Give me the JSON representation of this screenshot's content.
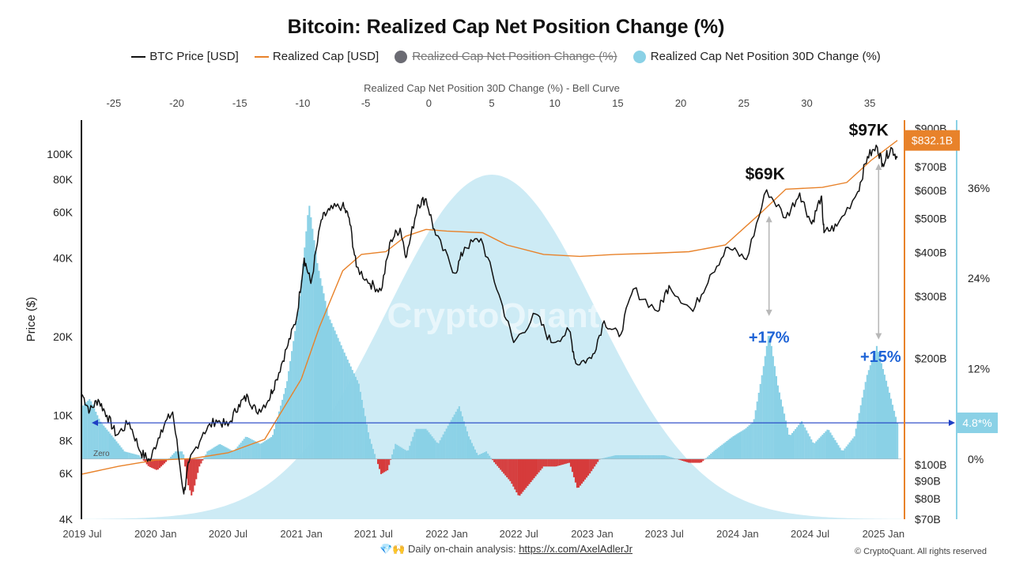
{
  "title": "Bitcoin: Realized Cap Net Position Change (%)",
  "legend": {
    "btc_price": "BTC Price [USD]",
    "realized_cap": "Realized Cap [USD]",
    "net_position_change": "Realized Cap Net Position Change (%)",
    "net_position_30d": "Realized Cap Net Position 30D Change (%)"
  },
  "colors": {
    "btc_price": "#111111",
    "realized_cap": "#e8822a",
    "bar_positive": "#8ad1e6",
    "bar_negative": "#d63b3b",
    "bell": "#cdebf5",
    "annotation_blue": "#1e63d6",
    "arrow_gray": "#b8b8b8",
    "marker_line": "#1e3fc4",
    "cap_label_bg": "#e8822a",
    "pct_label_bg": "#8ad1e6"
  },
  "footer": {
    "icons": "💎🙌",
    "text": "Daily on-chain analysis: ",
    "link": "https://x.com/AxelAdlerJr"
  },
  "copyright": "© CryptoQuant. All rights reserved",
  "watermark": "CryptoQuant",
  "chart_data": {
    "type": "line",
    "top_axis_label": "Realized Cap Net Position 30D Change (%) - Bell Curve",
    "top_axis_ticks": [
      "-25",
      "-20",
      "-15",
      "-10",
      "-5",
      "0",
      "5",
      "10",
      "15",
      "20",
      "25",
      "30",
      "35"
    ],
    "top_axis_range": [
      -27.5,
      37.5
    ],
    "ylabel_left": "Price ($)",
    "y_left_ticks": [
      "100K",
      "80K",
      "60K",
      "40K",
      "20K",
      "10K",
      "8K",
      "6K",
      "4K"
    ],
    "y_left_range": [
      4000,
      135000
    ],
    "y_left_scale": "log",
    "y_right_cap_ticks": [
      "$900B",
      "$700B",
      "$600B",
      "$500B",
      "$400B",
      "$300B",
      "$200B",
      "$100B",
      "$90B",
      "$80B",
      "$70B"
    ],
    "y_right_cap_range": [
      70,
      950
    ],
    "y_right_cap_scale": "log",
    "y_right_pct_ticks": [
      "36%",
      "24%",
      "12%",
      "0%"
    ],
    "y_right_pct_range": [
      -8,
      45
    ],
    "x_ticks": [
      "2019 Jul",
      "2020 Jan",
      "2020 Jul",
      "2021 Jan",
      "2021 Jul",
      "2022 Jan",
      "2022 Jul",
      "2023 Jan",
      "2023 Jul",
      "2024 Jan",
      "2024 Jul",
      "2025 Jan"
    ],
    "x_range": [
      "2019-07-01",
      "2025-02-15"
    ],
    "zero_label": "Zero",
    "current_cap_label": "$832.1B",
    "current_pct_label": "4.8*%",
    "reference_pct": 4.8,
    "annotations": [
      {
        "text": "$97K",
        "date": "2024-11-25",
        "price": 118000
      },
      {
        "text": "$69K",
        "date": "2024-03-10",
        "price": 80000
      },
      {
        "text": "+17%",
        "date": "2024-03-20",
        "price": 19000
      },
      {
        "text": "+15%",
        "date": "2024-12-25",
        "price": 16000
      }
    ],
    "arrows": [
      {
        "date": "2024-03-20",
        "price_from": 58000,
        "price_to": 24000
      },
      {
        "date": "2024-12-20",
        "price_from": 92000,
        "price_to": 19500
      }
    ],
    "bell_curve": {
      "center_pct": 5,
      "sigma_pct": 8.3
    },
    "btc_price": [
      [
        "2019-07-01",
        12000
      ],
      [
        "2019-07-20",
        10400
      ],
      [
        "2019-08-10",
        11500
      ],
      [
        "2019-09-01",
        10000
      ],
      [
        "2019-09-25",
        8400
      ],
      [
        "2019-10-27",
        9400
      ],
      [
        "2019-11-25",
        7200
      ],
      [
        "2019-12-18",
        6700
      ],
      [
        "2020-01-15",
        8800
      ],
      [
        "2020-02-13",
        10300
      ],
      [
        "2020-03-12",
        5000
      ],
      [
        "2020-03-25",
        6600
      ],
      [
        "2020-04-30",
        8600
      ],
      [
        "2020-06-01",
        9600
      ],
      [
        "2020-07-01",
        9100
      ],
      [
        "2020-07-28",
        11000
      ],
      [
        "2020-08-20",
        11800
      ],
      [
        "2020-09-10",
        10300
      ],
      [
        "2020-10-10",
        11400
      ],
      [
        "2020-10-30",
        13700
      ],
      [
        "2020-11-25",
        18000
      ],
      [
        "2020-12-20",
        23500
      ],
      [
        "2021-01-08",
        40000
      ],
      [
        "2021-01-25",
        32000
      ],
      [
        "2021-02-20",
        56000
      ],
      [
        "2021-03-13",
        61000
      ],
      [
        "2021-04-14",
        63500
      ],
      [
        "2021-05-01",
        57000
      ],
      [
        "2021-05-19",
        37000
      ],
      [
        "2021-06-22",
        32000
      ],
      [
        "2021-07-20",
        30000
      ],
      [
        "2021-08-14",
        47000
      ],
      [
        "2021-09-06",
        52000
      ],
      [
        "2021-09-22",
        40500
      ],
      [
        "2021-10-20",
        64000
      ],
      [
        "2021-11-10",
        67500
      ],
      [
        "2021-12-04",
        49000
      ],
      [
        "2022-01-22",
        35000
      ],
      [
        "2022-02-15",
        44000
      ],
      [
        "2022-03-28",
        47500
      ],
      [
        "2022-05-12",
        29000
      ],
      [
        "2022-06-18",
        19000
      ],
      [
        "2022-08-13",
        24400
      ],
      [
        "2022-09-20",
        19000
      ],
      [
        "2022-11-05",
        21000
      ],
      [
        "2022-11-21",
        15800
      ],
      [
        "2022-12-30",
        16500
      ],
      [
        "2023-01-31",
        23000
      ],
      [
        "2023-03-10",
        20000
      ],
      [
        "2023-04-14",
        30400
      ],
      [
        "2023-06-15",
        25000
      ],
      [
        "2023-07-13",
        31400
      ],
      [
        "2023-09-11",
        25000
      ],
      [
        "2023-10-24",
        34500
      ],
      [
        "2023-12-08",
        44000
      ],
      [
        "2024-01-23",
        39500
      ],
      [
        "2024-03-14",
        73000
      ],
      [
        "2024-05-01",
        57000
      ],
      [
        "2024-06-05",
        71000
      ],
      [
        "2024-07-05",
        54000
      ],
      [
        "2024-07-29",
        69000
      ],
      [
        "2024-08-05",
        50000
      ],
      [
        "2024-09-06",
        53000
      ],
      [
        "2024-10-29",
        72000
      ],
      [
        "2024-11-22",
        98000
      ],
      [
        "2024-12-17",
        106000
      ],
      [
        "2024-12-30",
        92000
      ],
      [
        "2025-01-20",
        106000
      ],
      [
        "2025-02-05",
        97000
      ]
    ],
    "realized_cap_billion": [
      [
        "2019-07-01",
        94
      ],
      [
        "2019-10-01",
        99
      ],
      [
        "2020-01-01",
        103
      ],
      [
        "2020-04-01",
        104
      ],
      [
        "2020-07-01",
        108
      ],
      [
        "2020-10-01",
        118
      ],
      [
        "2021-01-01",
        175
      ],
      [
        "2021-02-15",
        245
      ],
      [
        "2021-04-15",
        355
      ],
      [
        "2021-06-01",
        395
      ],
      [
        "2021-08-01",
        402
      ],
      [
        "2021-09-20",
        445
      ],
      [
        "2021-11-10",
        465
      ],
      [
        "2022-01-01",
        460
      ],
      [
        "2022-04-01",
        455
      ],
      [
        "2022-06-01",
        420
      ],
      [
        "2022-09-01",
        395
      ],
      [
        "2022-12-01",
        390
      ],
      [
        "2023-03-01",
        395
      ],
      [
        "2023-06-01",
        398
      ],
      [
        "2023-09-01",
        402
      ],
      [
        "2023-12-01",
        420
      ],
      [
        "2024-03-01",
        520
      ],
      [
        "2024-05-01",
        605
      ],
      [
        "2024-08-01",
        612
      ],
      [
        "2024-10-01",
        632
      ],
      [
        "2024-12-01",
        730
      ],
      [
        "2025-02-05",
        832
      ]
    ],
    "net_position_30d_pct": [
      [
        "2019-07-01",
        7
      ],
      [
        "2019-07-20",
        8
      ],
      [
        "2019-08-15",
        5
      ],
      [
        "2019-09-15",
        3
      ],
      [
        "2019-10-15",
        1
      ],
      [
        "2019-11-20",
        0.5
      ],
      [
        "2019-12-15",
        -1
      ],
      [
        "2020-01-05",
        -1.5
      ],
      [
        "2020-01-25",
        -0.5
      ],
      [
        "2020-02-20",
        1
      ],
      [
        "2020-03-10",
        1
      ],
      [
        "2020-03-20",
        -3
      ],
      [
        "2020-04-01",
        -5
      ],
      [
        "2020-04-20",
        -1
      ],
      [
        "2020-05-10",
        1
      ],
      [
        "2020-06-10",
        2
      ],
      [
        "2020-07-15",
        1
      ],
      [
        "2020-08-15",
        3
      ],
      [
        "2020-09-20",
        2
      ],
      [
        "2020-10-20",
        3
      ],
      [
        "2020-11-25",
        10
      ],
      [
        "2020-12-25",
        20
      ],
      [
        "2021-01-20",
        34
      ],
      [
        "2021-02-10",
        26
      ],
      [
        "2021-03-10",
        19
      ],
      [
        "2021-04-20",
        14
      ],
      [
        "2021-05-25",
        10
      ],
      [
        "2021-06-20",
        3
      ],
      [
        "2021-07-20",
        -2
      ],
      [
        "2021-08-05",
        -1.5
      ],
      [
        "2021-08-25",
        2
      ],
      [
        "2021-09-25",
        1
      ],
      [
        "2021-10-15",
        4
      ],
      [
        "2021-11-10",
        4
      ],
      [
        "2021-12-10",
        2
      ],
      [
        "2022-01-10",
        5
      ],
      [
        "2022-02-01",
        7
      ],
      [
        "2022-02-25",
        3
      ],
      [
        "2022-03-20",
        0.5
      ],
      [
        "2022-04-10",
        1
      ],
      [
        "2022-05-01",
        -0.5
      ],
      [
        "2022-06-10",
        -3
      ],
      [
        "2022-07-01",
        -5
      ],
      [
        "2022-08-01",
        -3
      ],
      [
        "2022-09-01",
        -1
      ],
      [
        "2022-10-01",
        -1
      ],
      [
        "2022-11-05",
        -0.5
      ],
      [
        "2022-11-25",
        -4
      ],
      [
        "2022-12-25",
        -2
      ],
      [
        "2023-01-20",
        0
      ],
      [
        "2023-03-01",
        0.5
      ],
      [
        "2023-05-01",
        0.5
      ],
      [
        "2023-07-01",
        0.5
      ],
      [
        "2023-09-01",
        -0.5
      ],
      [
        "2023-10-01",
        -0.5
      ],
      [
        "2023-11-01",
        1
      ],
      [
        "2023-12-20",
        3
      ],
      [
        "2024-01-20",
        4
      ],
      [
        "2024-02-10",
        5
      ],
      [
        "2024-03-05",
        12
      ],
      [
        "2024-03-20",
        17
      ],
      [
        "2024-04-10",
        10
      ],
      [
        "2024-05-10",
        3
      ],
      [
        "2024-06-10",
        5
      ],
      [
        "2024-07-10",
        2
      ],
      [
        "2024-08-15",
        4
      ],
      [
        "2024-09-20",
        1
      ],
      [
        "2024-10-20",
        3
      ],
      [
        "2024-11-20",
        11
      ],
      [
        "2024-12-15",
        15
      ],
      [
        "2025-01-05",
        11
      ],
      [
        "2025-02-05",
        4.8
      ]
    ]
  }
}
